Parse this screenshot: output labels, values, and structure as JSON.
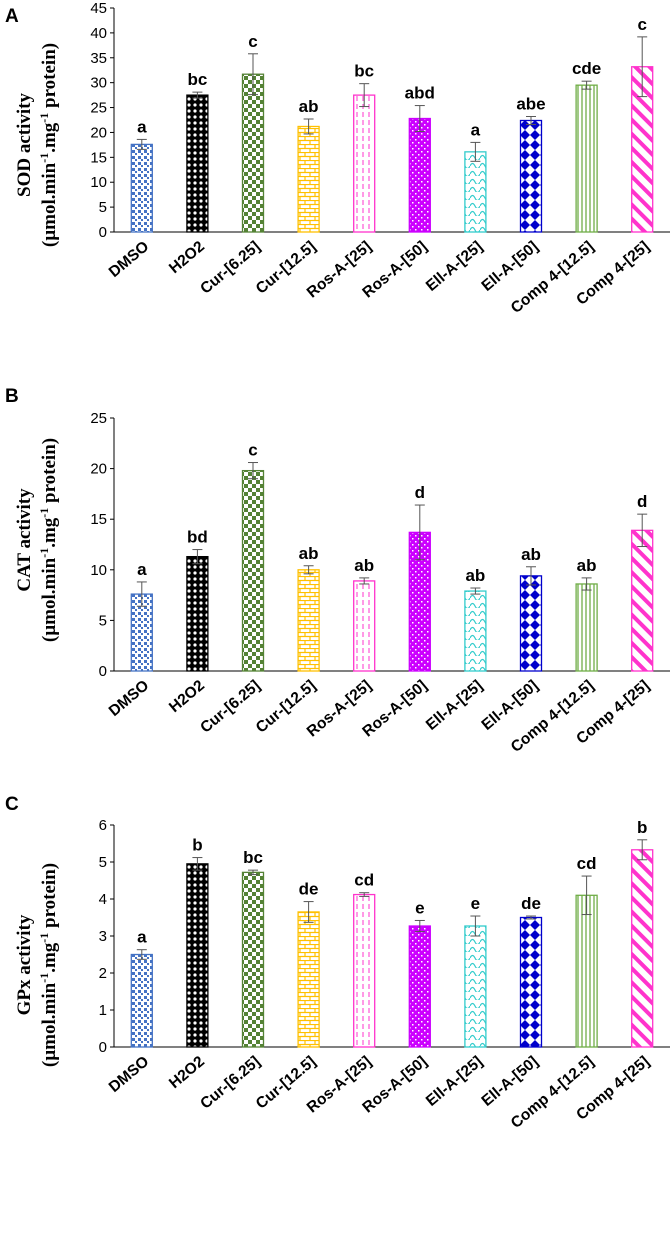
{
  "colors": {
    "DMSO": "#4472c4",
    "H2O2": "#000000",
    "Cur-[6.25]": "#548235",
    "Cur-[12.5]": "#ffc000",
    "Ros-A-[25]": "#ff33cc",
    "Ros-A-[50]": "#cc00ff",
    "Ell-A-[25]": "#33cccc",
    "Ell-A-[50]": "#0000cc",
    "Comp 4-[12.5]": "#70ad47",
    "Comp 4-[25]": "#ff33cc"
  },
  "patterns": [
    "dots",
    "circles",
    "checker",
    "bricks",
    "dashedvert",
    "denseDots",
    "waves",
    "diamonds",
    "vertLines",
    "diagonal"
  ],
  "chart_data": [
    {
      "type": "bar",
      "panel": "A",
      "categories": [
        "DMSO",
        "H2O2",
        "Cur-[6.25]",
        "Cur-[12.5]",
        "Ros-A-[25]",
        "Ros-A-[50]",
        "Ell-A-[25]",
        "Ell-A-[50]",
        "Comp 4-[12.5]",
        "Comp 4-[25]"
      ],
      "values": [
        17.6,
        27.5,
        31.7,
        21.2,
        27.5,
        22.8,
        16.1,
        22.4,
        29.5,
        33.2
      ],
      "errors": [
        1.0,
        0.6,
        4.1,
        1.5,
        2.3,
        2.6,
        1.9,
        0.8,
        0.8,
        6.0
      ],
      "significance": [
        "a",
        "bc",
        "c",
        "ab",
        "bc",
        "abd",
        "a",
        "abe",
        "cde",
        "c"
      ],
      "ylabel_line1": "SOD activity",
      "ylabel_line2_main": "(µmol.min",
      "ylabel_sup1": "-1",
      "ylabel_mid": ".mg",
      "ylabel_sup2": "-1",
      "ylabel_end": " protein)",
      "yticks": [
        0,
        5,
        10,
        15,
        20,
        25,
        30,
        35,
        40,
        45
      ],
      "ylim": [
        0,
        45
      ]
    },
    {
      "type": "bar",
      "panel": "B",
      "categories": [
        "DMSO",
        "H2O2",
        "Cur-[6.25]",
        "Cur-[12.5]",
        "Ros-A-[25]",
        "Ros-A-[50]",
        "Ell-A-[25]",
        "Ell-A-[50]",
        "Comp 4-[12.5]",
        "Comp 4-[25]"
      ],
      "values": [
        7.6,
        11.3,
        19.8,
        10.0,
        8.9,
        13.7,
        7.9,
        9.4,
        8.6,
        13.9
      ],
      "errors": [
        1.2,
        0.7,
        0.8,
        0.4,
        0.3,
        2.7,
        0.3,
        0.9,
        0.6,
        1.6
      ],
      "significance": [
        "a",
        "bd",
        "c",
        "ab",
        "ab",
        "d",
        "ab",
        "ab",
        "ab",
        "d"
      ],
      "ylabel_line1": "CAT activity",
      "ylabel_line2_main": "(µmol.min",
      "ylabel_sup1": "-1",
      "ylabel_mid": ".mg",
      "ylabel_sup2": "-1",
      "ylabel_end": " protein)",
      "yticks": [
        0,
        5,
        10,
        15,
        20,
        25
      ],
      "ylim": [
        0,
        25
      ]
    },
    {
      "type": "bar",
      "panel": "C",
      "categories": [
        "DMSO",
        "H2O2",
        "Cur-[6.25]",
        "Cur-[12.5]",
        "Ros-A-[25]",
        "Ros-A-[50]",
        "Ell-A-[25]",
        "Ell-A-[50]",
        "Comp 4-[12.5]",
        "Comp 4-[25]"
      ],
      "values": [
        2.5,
        4.95,
        4.72,
        3.65,
        4.12,
        3.27,
        3.27,
        3.5,
        4.1,
        5.33
      ],
      "errors": [
        0.13,
        0.17,
        0.06,
        0.28,
        0.05,
        0.15,
        0.27,
        0.04,
        0.52,
        0.27
      ],
      "significance": [
        "a",
        "b",
        "bc",
        "de",
        "cd",
        "e",
        "e",
        "de",
        "cd",
        "b"
      ],
      "ylabel_line1": "GPx activity",
      "ylabel_line2_main": "(µmol.min",
      "ylabel_sup1": "-1",
      "ylabel_mid": ".mg",
      "ylabel_sup2": "-1",
      "ylabel_end": " protein)",
      "yticks": [
        0,
        1,
        2,
        3,
        4,
        5,
        6
      ],
      "ylim": [
        0,
        6
      ]
    }
  ]
}
